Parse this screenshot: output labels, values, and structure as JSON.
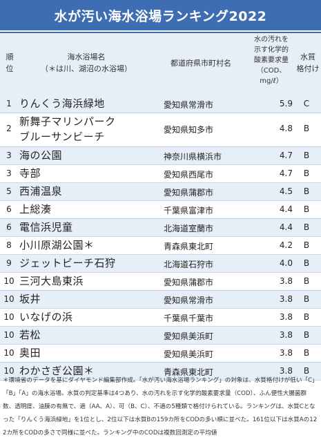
{
  "title": "水が汚い海水浴場ランキング2022",
  "header": {
    "rank": [
      "順",
      "位"
    ],
    "name": [
      "海水浴場名",
      "（＊は川、湖沼の水浴場）"
    ],
    "city": "都道府県市町村名",
    "cod": [
      "水の汚れを",
      "示す化学的",
      "酸素要求量",
      "（COD、",
      "mg/ℓ）"
    ],
    "grade": [
      "水質",
      "格付け"
    ]
  },
  "rows": [
    {
      "rank": "1",
      "name": [
        "りんくう海浜緑地"
      ],
      "city": "愛知県常滑市",
      "cod": "5.9",
      "grade": "C"
    },
    {
      "rank": "2",
      "name": [
        "新舞子マリンパーク",
        "ブルーサンビーチ"
      ],
      "city": "愛知県知多市",
      "cod": "4.8",
      "grade": "B"
    },
    {
      "rank": "3",
      "name": [
        "海の公園"
      ],
      "city": "神奈川県横浜市",
      "cod": "4.7",
      "grade": "B"
    },
    {
      "rank": "3",
      "name": [
        "寺部"
      ],
      "city": "愛知県西尾市",
      "cod": "4.7",
      "grade": "B"
    },
    {
      "rank": "5",
      "name": [
        "西浦温泉"
      ],
      "city": "愛知県蒲郡市",
      "cod": "4.5",
      "grade": "B"
    },
    {
      "rank": "6",
      "name": [
        "上総湊"
      ],
      "city": "千葉県富津市",
      "cod": "4.4",
      "grade": "B"
    },
    {
      "rank": "6",
      "name": [
        "電信浜児童"
      ],
      "city": "北海道室蘭市",
      "cod": "4.4",
      "grade": "B"
    },
    {
      "rank": "8",
      "name": [
        "小川原湖公園＊"
      ],
      "city": "青森県東北町",
      "cod": "4.2",
      "grade": "B"
    },
    {
      "rank": "9",
      "name": [
        "ジェットビーチ石狩"
      ],
      "city": "北海道石狩市",
      "cod": "4.0",
      "grade": "B"
    },
    {
      "rank": "10",
      "name": [
        "三河大島東浜"
      ],
      "city": "愛知県蒲郡市",
      "cod": "3.8",
      "grade": "B"
    },
    {
      "rank": "10",
      "name": [
        "坂井"
      ],
      "city": "愛知県常滑市",
      "cod": "3.8",
      "grade": "B"
    },
    {
      "rank": "10",
      "name": [
        "いなげの浜"
      ],
      "city": "千葉県千葉市",
      "cod": "3.8",
      "grade": "B"
    },
    {
      "rank": "10",
      "name": [
        "若松"
      ],
      "city": "愛知県美浜町",
      "cod": "3.8",
      "grade": "B"
    },
    {
      "rank": "10",
      "name": [
        "奥田"
      ],
      "city": "愛知県美浜町",
      "cod": "3.8",
      "grade": "B"
    },
    {
      "rank": "10",
      "name": [
        "わかさぎ公園＊"
      ],
      "city": "青森県東北町",
      "cod": "3.8",
      "grade": "B"
    }
  ],
  "note": "＊環境省のデータを基にダイヤモンド編集部作成。「水が汚い海水浴場ランキング」の対象は、水質格付けが低い「C」「B」「A」の海水浴場。水質の判定基準は4つあり、水の汚れを示す化学的酸素要求量（COD）、ふん便性大腸菌群数、透明度、油膜の有無で、適（AA、A）、可（B、C）、不適の5種類で格付けられている。ランキングは、水質Cとなった「りんくう海浜緑地」を1位とし、2位以下は水質Bの159カ所をCODの多い順に並べた。161位以下は水質Aの122カ所をCODの多さで同様に並べた。ランキング中のCODは複数回測定の平均値"
}
